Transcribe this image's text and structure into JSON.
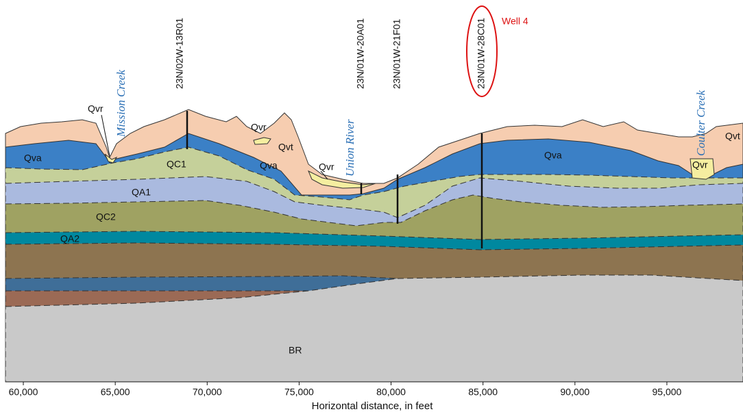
{
  "wells": [
    "23N/02W-13R01",
    "23N/01W-20A01",
    "23N/01W-21F01",
    "23N/01W-28C01"
  ],
  "streams": [
    "Mission Creek",
    "Union River",
    "Coulter Creek"
  ],
  "annotation": "Well 4",
  "units": [
    "Qvr",
    "Qva",
    "QC1",
    "Qva",
    "QA1",
    "QC2",
    "QA2",
    "Qvr",
    "Qvt",
    "Qvr",
    "Qva",
    "Qvr",
    "Qvt",
    "BR"
  ],
  "x_axis": {
    "label": "Horizontal distance, in feet",
    "xlim": [
      59030,
      99140
    ],
    "xticks": [
      {
        "value": 60000,
        "label": "60,000"
      },
      {
        "value": 65000,
        "label": "65,000"
      },
      {
        "value": 70000,
        "label": "70,000"
      },
      {
        "value": 75000,
        "label": "75,000"
      },
      {
        "value": 80000,
        "label": "80,000"
      },
      {
        "value": 85000,
        "label": "85,000"
      },
      {
        "value": 90000,
        "label": "90,000"
      },
      {
        "value": 95000,
        "label": "95,000"
      }
    ]
  }
}
